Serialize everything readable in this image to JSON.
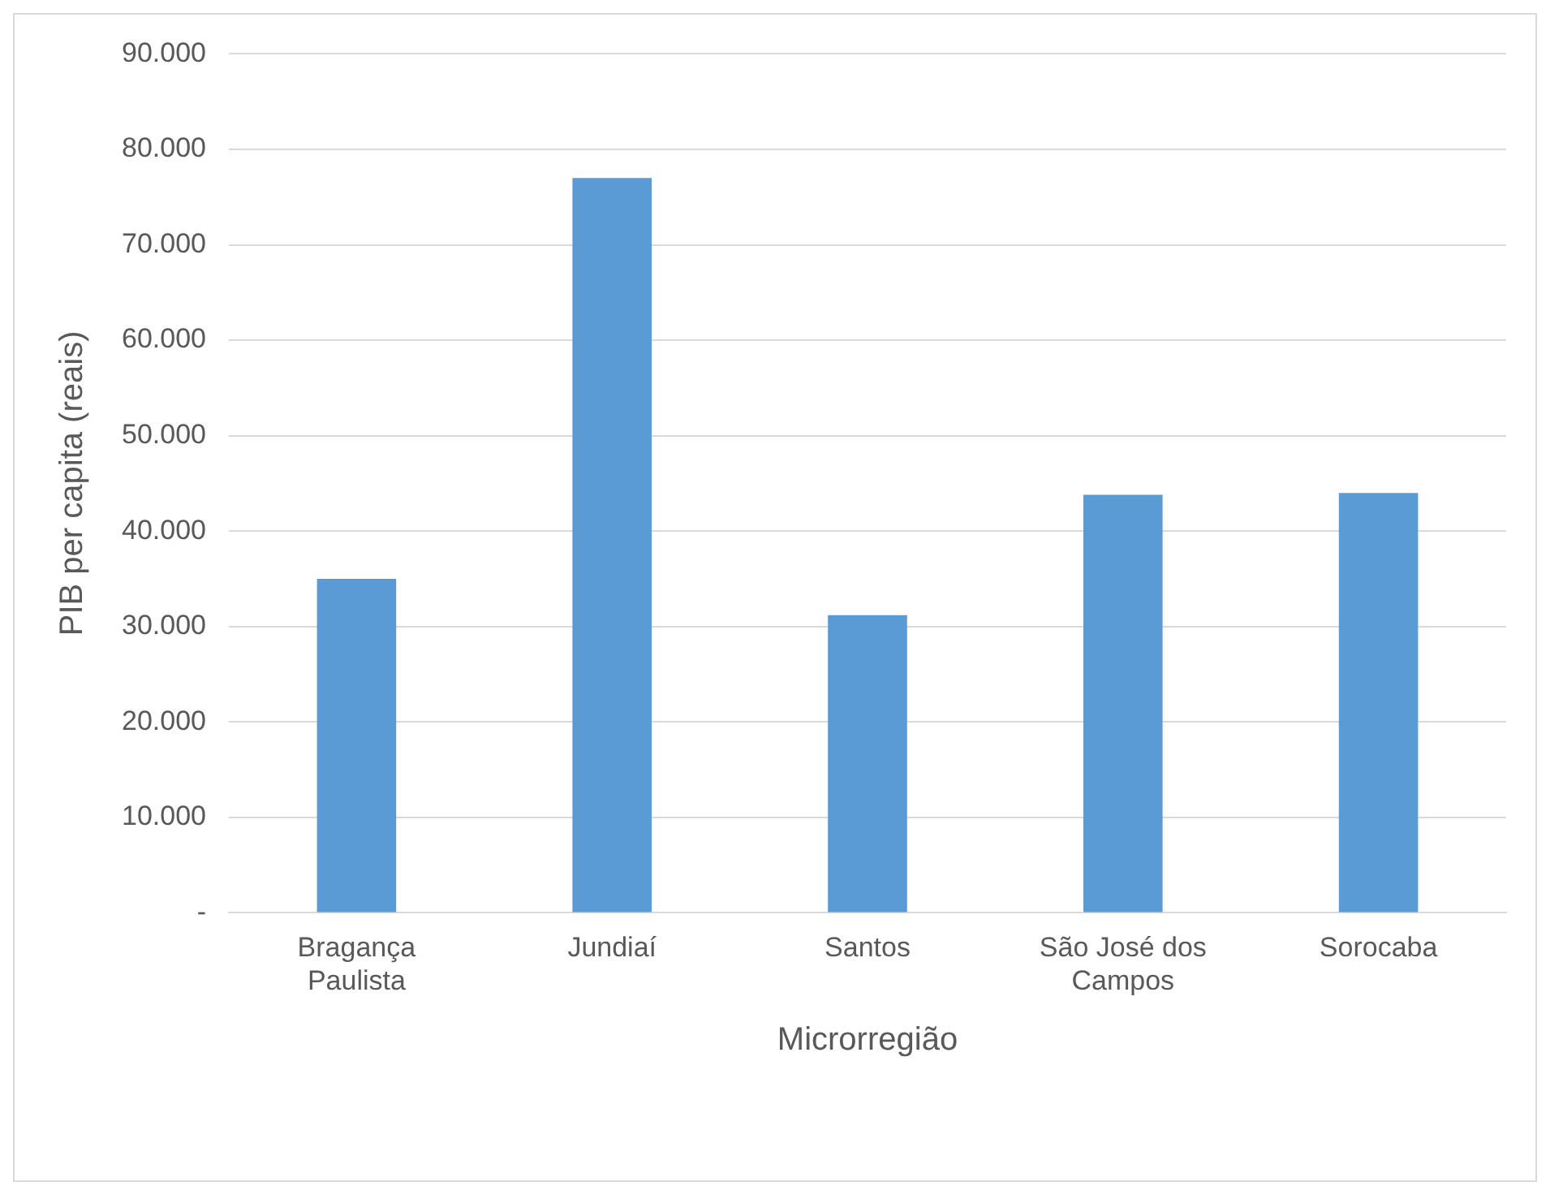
{
  "chart_data": {
    "type": "bar",
    "xlabel": "Microrregião",
    "ylabel": "PIB per capita (reais)",
    "categories": [
      "Bragança Paulista",
      "Jundiaí",
      "Santos",
      "São José dos Campos",
      "Sorocaba"
    ],
    "values": [
      35000,
      77000,
      31200,
      43800,
      44000
    ],
    "color": "#5b9bd5",
    "ylim": [
      0,
      90000
    ],
    "yticks": [
      {
        "value": 0,
        "label": "-"
      },
      {
        "value": 10000,
        "label": "10.000"
      },
      {
        "value": 20000,
        "label": "20.000"
      },
      {
        "value": 30000,
        "label": "30.000"
      },
      {
        "value": 40000,
        "label": "40.000"
      },
      {
        "value": 50000,
        "label": "50.000"
      },
      {
        "value": 60000,
        "label": "60.000"
      },
      {
        "value": 70000,
        "label": "70.000"
      },
      {
        "value": 80000,
        "label": "80.000"
      },
      {
        "value": 90000,
        "label": "90.000"
      }
    ],
    "grid": "y",
    "legend": false
  }
}
